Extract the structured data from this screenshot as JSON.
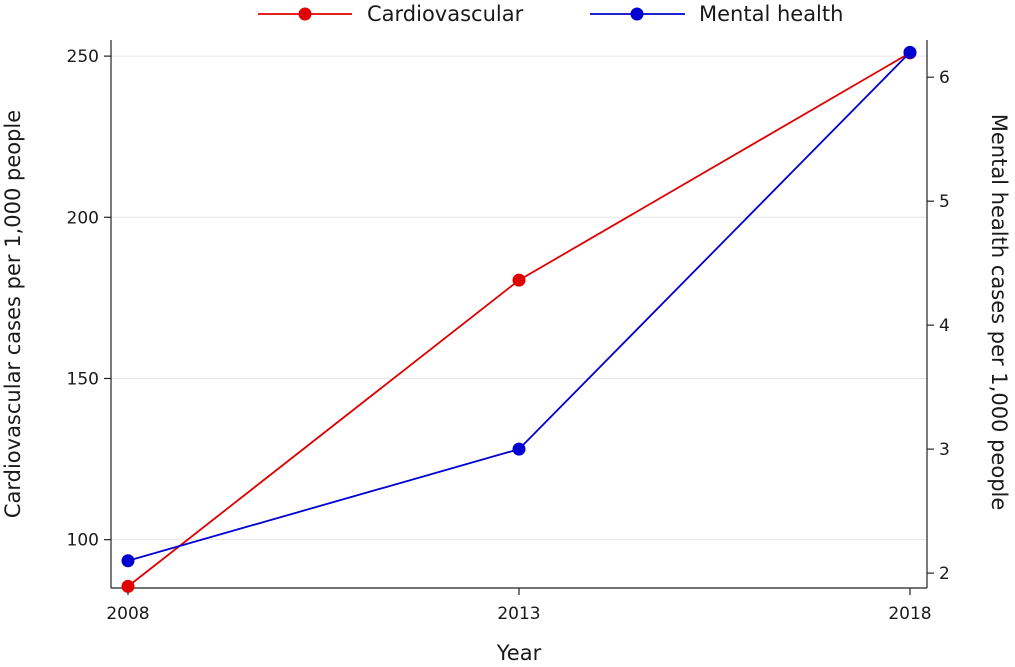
{
  "chart_data": {
    "type": "line",
    "x": [
      2008,
      2013,
      2018
    ],
    "xlabel": "Year",
    "xticks": [
      "2008",
      "2013",
      "2018"
    ],
    "xlim": [
      2008,
      2018
    ],
    "left_axis": {
      "label": "Cardiovascular cases per 1,000 people",
      "ticks": [
        "100",
        "150",
        "200",
        "250"
      ],
      "lim": [
        85,
        255
      ]
    },
    "right_axis": {
      "label": "Mental health cases per 1,000 people",
      "ticks": [
        "2",
        "3",
        "4",
        "5",
        "6"
      ],
      "lim": [
        1.88,
        6.3
      ]
    },
    "grid": "horizontal",
    "legend_position": "top",
    "series": [
      {
        "name": "Cardiovascular",
        "axis": "left",
        "color": "#e00000",
        "values": [
          85.5,
          180.5,
          251
        ]
      },
      {
        "name": "Mental health",
        "axis": "right",
        "color": "#0000d0",
        "values": [
          2.1,
          3.0,
          6.2
        ]
      }
    ]
  }
}
